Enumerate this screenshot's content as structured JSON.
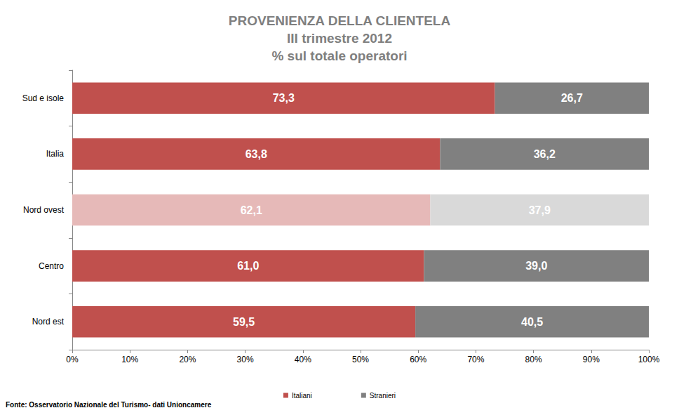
{
  "chart_data": {
    "type": "bar",
    "title": "PROVENIENZA DELLA CLIENTELA\nIII trimestre 2012\n% sul totale operatori",
    "annotations": [
      "Fonte: Osservatorio Nazionale del Turismo- dati Unioncamere"
    ],
    "orientation": "horizontal",
    "stacked": true,
    "data_labels": true,
    "grid": false,
    "legend": "bottom",
    "categories": [
      "Sud e isole",
      "Italia",
      "Nord ovest",
      "Centro",
      "Nord est"
    ],
    "series": [
      {
        "name": "Italiani",
        "color": "#c0504d",
        "colors": [
          "#c0504d",
          "#c0504d",
          "#e6b9b8",
          "#c0504d",
          "#c0504d"
        ],
        "values": [
          73.3,
          63.8,
          62.1,
          61.0,
          59.5
        ],
        "value_labels": [
          "73,3",
          "63,8",
          "62,1",
          "61,0",
          "59,5"
        ]
      },
      {
        "name": "Stranieri",
        "color": "#808080",
        "colors": [
          "#808080",
          "#808080",
          "#d9d9d9",
          "#808080",
          "#808080"
        ],
        "values": [
          26.7,
          36.2,
          37.9,
          39.0,
          40.5
        ],
        "value_labels": [
          "26,7",
          "36,2",
          "37,9",
          "39,0",
          "40,5"
        ]
      }
    ],
    "xlim": [
      0,
      100
    ],
    "xticks": [
      {
        "value": 0,
        "label": "0%"
      },
      {
        "value": 10,
        "label": "10%"
      },
      {
        "value": 20,
        "label": "20%"
      },
      {
        "value": 30,
        "label": "30%"
      },
      {
        "value": 40,
        "label": "40%"
      },
      {
        "value": 50,
        "label": "50%"
      },
      {
        "value": 60,
        "label": "60%"
      },
      {
        "value": 70,
        "label": "70%"
      },
      {
        "value": 80,
        "label": "80%"
      },
      {
        "value": 90,
        "label": "90%"
      },
      {
        "value": 100,
        "label": "100%"
      }
    ]
  }
}
